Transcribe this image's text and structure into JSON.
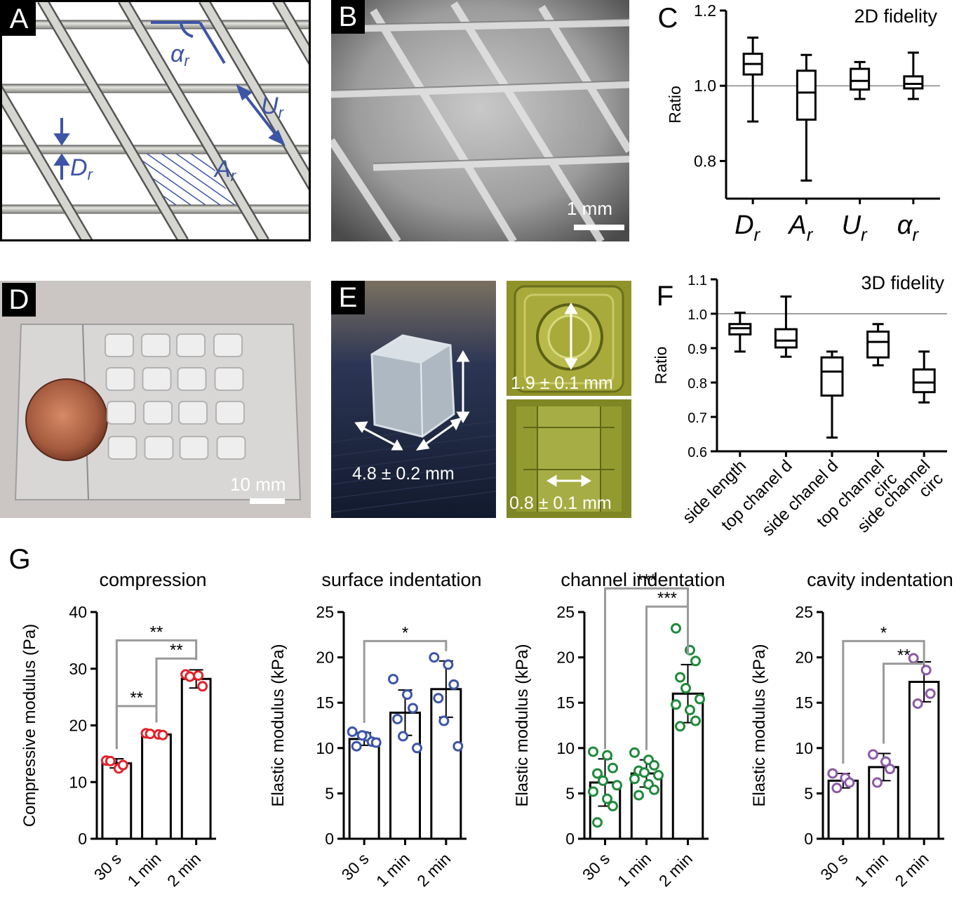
{
  "panels": {
    "a": {
      "label": "A",
      "symbols": {
        "alpha": "α",
        "U": "U",
        "D": "D",
        "A": "A",
        "sub": "r"
      }
    },
    "b": {
      "label": "B",
      "scale_text": "1 mm"
    },
    "c": {
      "label": "C"
    },
    "d": {
      "label": "D",
      "scale_text": "10 mm"
    },
    "e": {
      "label": "E",
      "measure_main": "4.8 ± 0.2 mm",
      "measure_top": "1.9 ± 0.1 mm",
      "measure_bottom": "0.8 ± 0.1 mm"
    },
    "f": {
      "label": "F"
    },
    "g": {
      "label": "G"
    }
  },
  "colors": {
    "red": "#e0242a",
    "blue": "#3d55a6",
    "green": "#1f8a3c",
    "purple": "#8c5aa8",
    "accent": "#3d55a6"
  },
  "chart_data": [
    {
      "id": "C",
      "type": "box",
      "title": "2D fidelity",
      "xlabel": "",
      "ylabel": "Ratio",
      "ylim": [
        0.7,
        1.2
      ],
      "yticks": [
        0.8,
        1.0,
        1.2
      ],
      "ytick_labels": [
        "0.8",
        "1.0",
        "1.2"
      ],
      "reference_line": 1.0,
      "categories": [
        {
          "base": "D",
          "sub": "r",
          "italic": true,
          "min": 0.905,
          "q1": 1.03,
          "median": 1.058,
          "q3": 1.085,
          "max": 1.128
        },
        {
          "base": "A",
          "sub": "r",
          "italic": true,
          "min": 0.748,
          "q1": 0.91,
          "median": 0.982,
          "q3": 1.04,
          "max": 1.082
        },
        {
          "base": "U",
          "sub": "r",
          "italic": true,
          "min": 0.965,
          "q1": 0.99,
          "median": 1.013,
          "q3": 1.045,
          "max": 1.063
        },
        {
          "base": "α",
          "sub": "r",
          "italic": true,
          "min": 0.965,
          "q1": 0.993,
          "median": 1.005,
          "q3": 1.025,
          "max": 1.088
        }
      ]
    },
    {
      "id": "F",
      "type": "box",
      "title": "3D fidelity",
      "xlabel": "",
      "ylabel": "Ratio",
      "ylim": [
        0.6,
        1.1
      ],
      "yticks": [
        0.6,
        0.7,
        0.8,
        0.9,
        1.0,
        1.1
      ],
      "ytick_labels": [
        "0.6",
        "0.7",
        "0.8",
        "0.9",
        "1.0",
        "1.1"
      ],
      "reference_line": 1.0,
      "categories": [
        {
          "lines": [
            "side length"
          ],
          "min": 0.89,
          "q1": 0.94,
          "median": 0.958,
          "q3": 0.97,
          "max": 1.003
        },
        {
          "lines": [
            "top chanel d"
          ],
          "min": 0.875,
          "q1": 0.902,
          "median": 0.922,
          "q3": 0.955,
          "max": 1.05
        },
        {
          "lines": [
            "side chanel d"
          ],
          "min": 0.64,
          "q1": 0.762,
          "median": 0.832,
          "q3": 0.873,
          "max": 0.89
        },
        {
          "lines": [
            "top channel",
            "circ"
          ],
          "min": 0.85,
          "q1": 0.873,
          "median": 0.918,
          "q3": 0.948,
          "max": 0.97
        },
        {
          "lines": [
            "side channel",
            "circ"
          ],
          "min": 0.742,
          "q1": 0.772,
          "median": 0.8,
          "q3": 0.838,
          "max": 0.89
        }
      ]
    },
    {
      "id": "G1",
      "type": "bar",
      "title": "compression",
      "xlabel": "",
      "ylabel": "Compressive modulus (Pa)",
      "ylim": [
        0,
        40
      ],
      "yticks": [
        0,
        10,
        20,
        30,
        40
      ],
      "color": "#e0242a",
      "categories": [
        "30 s",
        "1 min",
        "2 min"
      ],
      "values": [
        13.3,
        18.4,
        28.2
      ],
      "errors": [
        0.8,
        0.4,
        1.6
      ],
      "points": [
        [
          13.8,
          12.4,
          13.0,
          13.7
        ],
        [
          18.6,
          18.4,
          18.3,
          18.5
        ],
        [
          29.0,
          28.8,
          26.9,
          28.6
        ]
      ],
      "significance": [
        {
          "from": 0,
          "to": 2,
          "y": 35.0,
          "label": "**"
        },
        {
          "from": 1,
          "to": 2,
          "y": 31.8,
          "label": "**"
        },
        {
          "from": 0,
          "to": 1,
          "y": 23.4,
          "label": "**"
        }
      ]
    },
    {
      "id": "G2",
      "type": "bar",
      "title": "surface indentation",
      "xlabel": "",
      "ylabel": "Elastic modulus (kPa)",
      "ylim": [
        0,
        25
      ],
      "yticks": [
        0,
        5,
        10,
        15,
        20,
        25
      ],
      "color": "#3d55a6",
      "categories": [
        "30 s",
        "1 min",
        "2 min"
      ],
      "values": [
        11.0,
        13.9,
        16.5
      ],
      "errors": [
        0.7,
        2.5,
        3.1
      ],
      "points": [
        [
          11.8,
          11.3,
          10.7,
          10.2,
          11.4,
          10.6
        ],
        [
          17.6,
          15.9,
          14.4,
          13.2,
          11.3,
          10.0
        ],
        [
          20.0,
          19.2,
          17.0,
          15.5,
          13.0,
          10.2
        ]
      ],
      "significance": [
        {
          "from": 0,
          "to": 2,
          "y": 21.8,
          "label": "*"
        }
      ]
    },
    {
      "id": "G3",
      "type": "bar",
      "title": "channel indentation",
      "xlabel": "",
      "ylabel": "Elastic modulus (kPa)",
      "ylim": [
        0,
        25
      ],
      "yticks": [
        0,
        5,
        10,
        15,
        20,
        25
      ],
      "color": "#1f8a3c",
      "categories": [
        "30 s",
        "1 min",
        "2 min"
      ],
      "values": [
        6.2,
        7.2,
        16.0
      ],
      "errors": [
        2.6,
        1.5,
        3.2
      ],
      "points": [
        [
          9.6,
          9.2,
          7.8,
          7.2,
          6.4,
          5.9,
          5.2,
          4.4,
          3.6,
          1.8
        ],
        [
          9.5,
          8.7,
          8.1,
          7.5,
          7.3,
          7.0,
          6.6,
          6.0,
          5.4,
          4.8
        ],
        [
          23.2,
          20.8,
          19.6,
          17.8,
          16.6,
          15.4,
          14.8,
          14.2,
          13.0,
          12.4
        ]
      ],
      "significance": [
        {
          "from": 0,
          "to": 2,
          "y": 27.6,
          "label": "***"
        },
        {
          "from": 1,
          "to": 2,
          "y": 25.6,
          "label": "***"
        }
      ]
    },
    {
      "id": "G4",
      "type": "bar",
      "title": "cavity indentation",
      "xlabel": "",
      "ylabel": "Elastic modulus (kPa)",
      "ylim": [
        0,
        25
      ],
      "yticks": [
        0,
        5,
        10,
        15,
        20,
        25
      ],
      "color": "#8c5aa8",
      "categories": [
        "30 s",
        "1 min",
        "2 min"
      ],
      "values": [
        6.4,
        7.9,
        17.3
      ],
      "errors": [
        0.8,
        1.5,
        2.2
      ],
      "points": [
        [
          7.2,
          6.7,
          6.2,
          5.6
        ],
        [
          9.3,
          8.5,
          7.7,
          6.2
        ],
        [
          19.9,
          18.6,
          16.0,
          14.9
        ]
      ],
      "significance": [
        {
          "from": 0,
          "to": 2,
          "y": 21.8,
          "label": "*"
        },
        {
          "from": 1,
          "to": 2,
          "y": 19.3,
          "label": "**"
        }
      ]
    }
  ]
}
